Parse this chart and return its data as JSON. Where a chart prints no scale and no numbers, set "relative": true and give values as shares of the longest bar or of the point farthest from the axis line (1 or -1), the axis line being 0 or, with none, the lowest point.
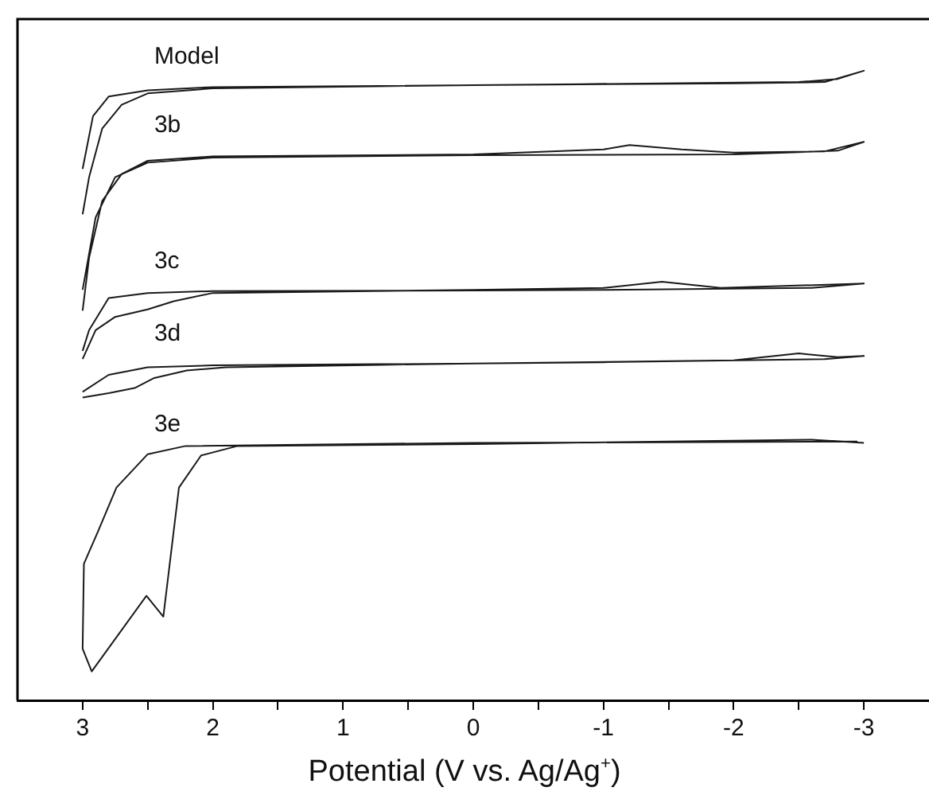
{
  "chart_data": {
    "type": "line",
    "relative": true,
    "xlabel": "Potential (V vs. Ag/Ag$^{+}$)",
    "xlim": [
      3.5,
      -3.5
    ],
    "xticks": [
      3,
      {
        "value": 2.5,
        "label": null
      },
      2,
      {
        "value": 1.5,
        "label": null
      },
      1,
      {
        "value": 0.5,
        "label": null
      },
      0,
      {
        "value": -0.5,
        "label": null
      },
      -1,
      {
        "value": -1.5,
        "label": null
      },
      -2,
      {
        "value": -2.5,
        "label": null
      },
      -3
    ],
    "grid": false,
    "legend": false,
    "marker": "none",
    "line_style": "solid",
    "series": [
      {
        "name": "Model",
        "color": "#1a1a1a",
        "x": [
          3.0,
          2.95,
          2.85,
          2.7,
          2.5,
          2.0,
          0,
          -2,
          -2.7,
          -3,
          -2.8,
          -2.5,
          -1,
          0,
          2,
          2.5,
          2.8,
          2.92,
          3.0
        ],
        "values": [
          0.772,
          0.831,
          0.908,
          0.946,
          0.964,
          0.972,
          0.977,
          0.98,
          0.982,
          1.0,
          0.987,
          0.982,
          0.979,
          0.977,
          0.974,
          0.969,
          0.959,
          0.928,
          0.844
        ]
      },
      {
        "name": "3b",
        "color": "#1a1a1a",
        "x": [
          3.0,
          2.95,
          2.85,
          2.7,
          2.5,
          2.0,
          0,
          -1.0,
          -1.2,
          -1.6,
          -2,
          -2.7,
          -3,
          -2.8,
          -2,
          0,
          2.0,
          2.5,
          2.75,
          2.9,
          3.0
        ],
        "values": [
          0.619,
          0.703,
          0.793,
          0.836,
          0.857,
          0.864,
          0.867,
          0.875,
          0.882,
          0.875,
          0.87,
          0.872,
          0.887,
          0.873,
          0.867,
          0.866,
          0.862,
          0.854,
          0.831,
          0.767,
          0.652
        ]
      },
      {
        "name": "3c",
        "color": "#1a1a1a",
        "x": [
          3.0,
          2.9,
          2.75,
          2.5,
          2.3,
          2.0,
          0,
          -1.0,
          -1.45,
          -1.9,
          -3,
          -2.6,
          -1,
          0,
          2,
          2.5,
          2.8,
          2.95,
          3.0
        ],
        "values": [
          0.542,
          0.588,
          0.609,
          0.621,
          0.634,
          0.647,
          0.652,
          0.655,
          0.665,
          0.655,
          0.662,
          0.655,
          0.652,
          0.651,
          0.65,
          0.647,
          0.639,
          0.588,
          0.555
        ]
      },
      {
        "name": "3d",
        "color": "#1a1a1a",
        "x": [
          3.0,
          2.8,
          2.6,
          2.45,
          2.2,
          1.9,
          0,
          -2,
          -2.5,
          -2.8,
          -3,
          -2.7,
          -1,
          0,
          2,
          2.5,
          2.8,
          3.0
        ],
        "values": [
          0.481,
          0.488,
          0.496,
          0.512,
          0.524,
          0.529,
          0.535,
          0.54,
          0.551,
          0.545,
          0.547,
          0.542,
          0.537,
          0.535,
          0.532,
          0.529,
          0.517,
          0.49
        ]
      },
      {
        "name": "3e",
        "color": "#1a1a1a",
        "x": [
          -3,
          -2.6,
          0,
          1.81,
          2.09,
          2.26,
          2.38,
          2.51,
          2.93,
          3.0,
          2.99,
          2.88,
          2.74,
          2.5,
          2.21,
          0,
          -2.95
        ],
        "values": [
          0.409,
          0.414,
          0.407,
          0.404,
          0.389,
          0.338,
          0.133,
          0.166,
          0.046,
          0.082,
          0.217,
          0.269,
          0.338,
          0.391,
          0.404,
          0.409,
          0.411
        ]
      }
    ]
  }
}
